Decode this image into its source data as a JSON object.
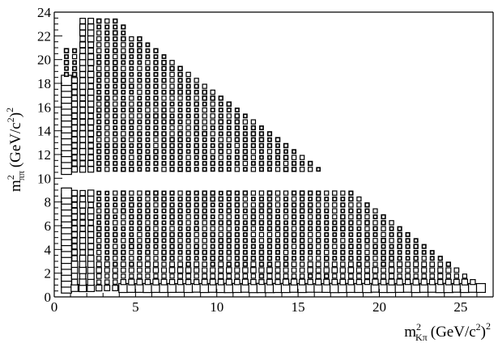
{
  "chart_data": {
    "type": "box-histogram",
    "title": "",
    "xlabel": {
      "base": "m",
      "sup": "2",
      "sub": "Kπ",
      "unit": "(GeV/c",
      "unit_sup": "2",
      "unit_end": ")",
      "unit_end_sup": "2"
    },
    "ylabel": {
      "base": "m",
      "sup": "2",
      "sub": "ππ",
      "unit": "(GeV/c",
      "unit_sup": "2",
      "unit_end": ")",
      "unit_end_sup": "2"
    },
    "xlim": [
      0,
      27
    ],
    "ylim": [
      0,
      24
    ],
    "x_ticks": [
      "0",
      "5",
      "10",
      "15",
      "20",
      "25"
    ],
    "y_ticks": [
      "0",
      "2",
      "4",
      "6",
      "8",
      "10",
      "12",
      "14",
      "16",
      "18",
      "20",
      "22",
      "24"
    ],
    "bins": {
      "x_step": 0.5,
      "y_step": 0.5,
      "x_start": 0.25,
      "y_start": 0.25
    },
    "structures": {
      "boundary": "Dalitz region: m²(Kπ) + m²(ππ) ≲ 27.5, empty band near m²(ππ) ≈ 9.5–10.2",
      "vertical_band_at_x": 0.8,
      "vertical_band_at_x2": 2.0,
      "horizontal_band_at_y": 0.8
    },
    "grid": false,
    "legend": "none"
  }
}
